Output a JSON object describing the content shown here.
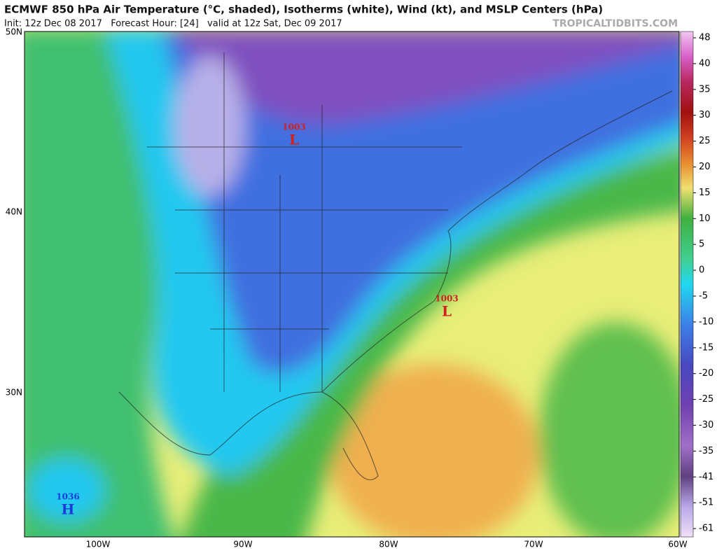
{
  "header": {
    "title": "ECMWF 850 hPa Air Temperature (°C, shaded), Isotherms (white), Wind (kt), and MSLP Centers (hPa)",
    "subtitle": "Init: 12z Dec 08 2017   Forecast Hour: [24]   valid at 12z Sat, Dec 09 2017",
    "watermark": "TROPICALTIDBITS.COM"
  },
  "latitude_labels": [
    "50N",
    "40N",
    "30N"
  ],
  "longitude_labels": [
    "100W",
    "90W",
    "80W",
    "70W",
    "60W"
  ],
  "colorbar": {
    "labels": [
      48,
      40,
      35,
      30,
      25,
      20,
      15,
      10,
      5,
      0,
      -5,
      -10,
      -15,
      -20,
      -25,
      -30,
      -35,
      -41,
      -51,
      -61
    ]
  },
  "pressure_centers": [
    {
      "value": "1003",
      "symbol": "L"
    },
    {
      "value": "1003",
      "symbol": "L"
    },
    {
      "value": "1036",
      "symbol": "H"
    }
  ]
}
